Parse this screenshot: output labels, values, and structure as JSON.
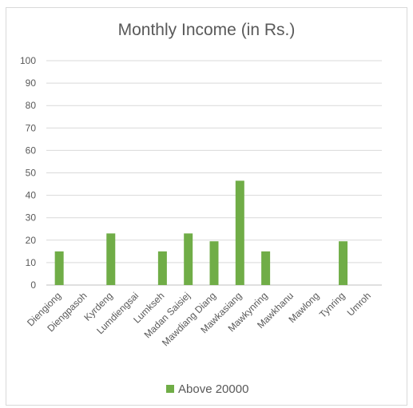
{
  "chart_data": {
    "type": "bar",
    "title": "Monthly Income (in Rs.)",
    "xlabel": "",
    "ylabel": "",
    "ylim": [
      0,
      100
    ],
    "yticks": [
      0,
      10,
      20,
      30,
      40,
      50,
      60,
      70,
      80,
      90,
      100
    ],
    "grid": true,
    "legend_position": "bottom",
    "categories": [
      "Diengiong",
      "Diengpasoh",
      "Kyrdeng",
      "Lumdiengsai",
      "Lumkseh",
      "Madan Saisiej",
      "Mawdiang Diang",
      "Mawkasiang",
      "Mawkynring",
      "Mawkhanu",
      "Mawlong",
      "Tynring",
      "Umroh"
    ],
    "series": [
      {
        "name": "Above 20000",
        "color": "#70ad47",
        "values": [
          15,
          0,
          23,
          0,
          15,
          23,
          19.5,
          46.5,
          15,
          0,
          0,
          19.5,
          0
        ]
      }
    ]
  }
}
